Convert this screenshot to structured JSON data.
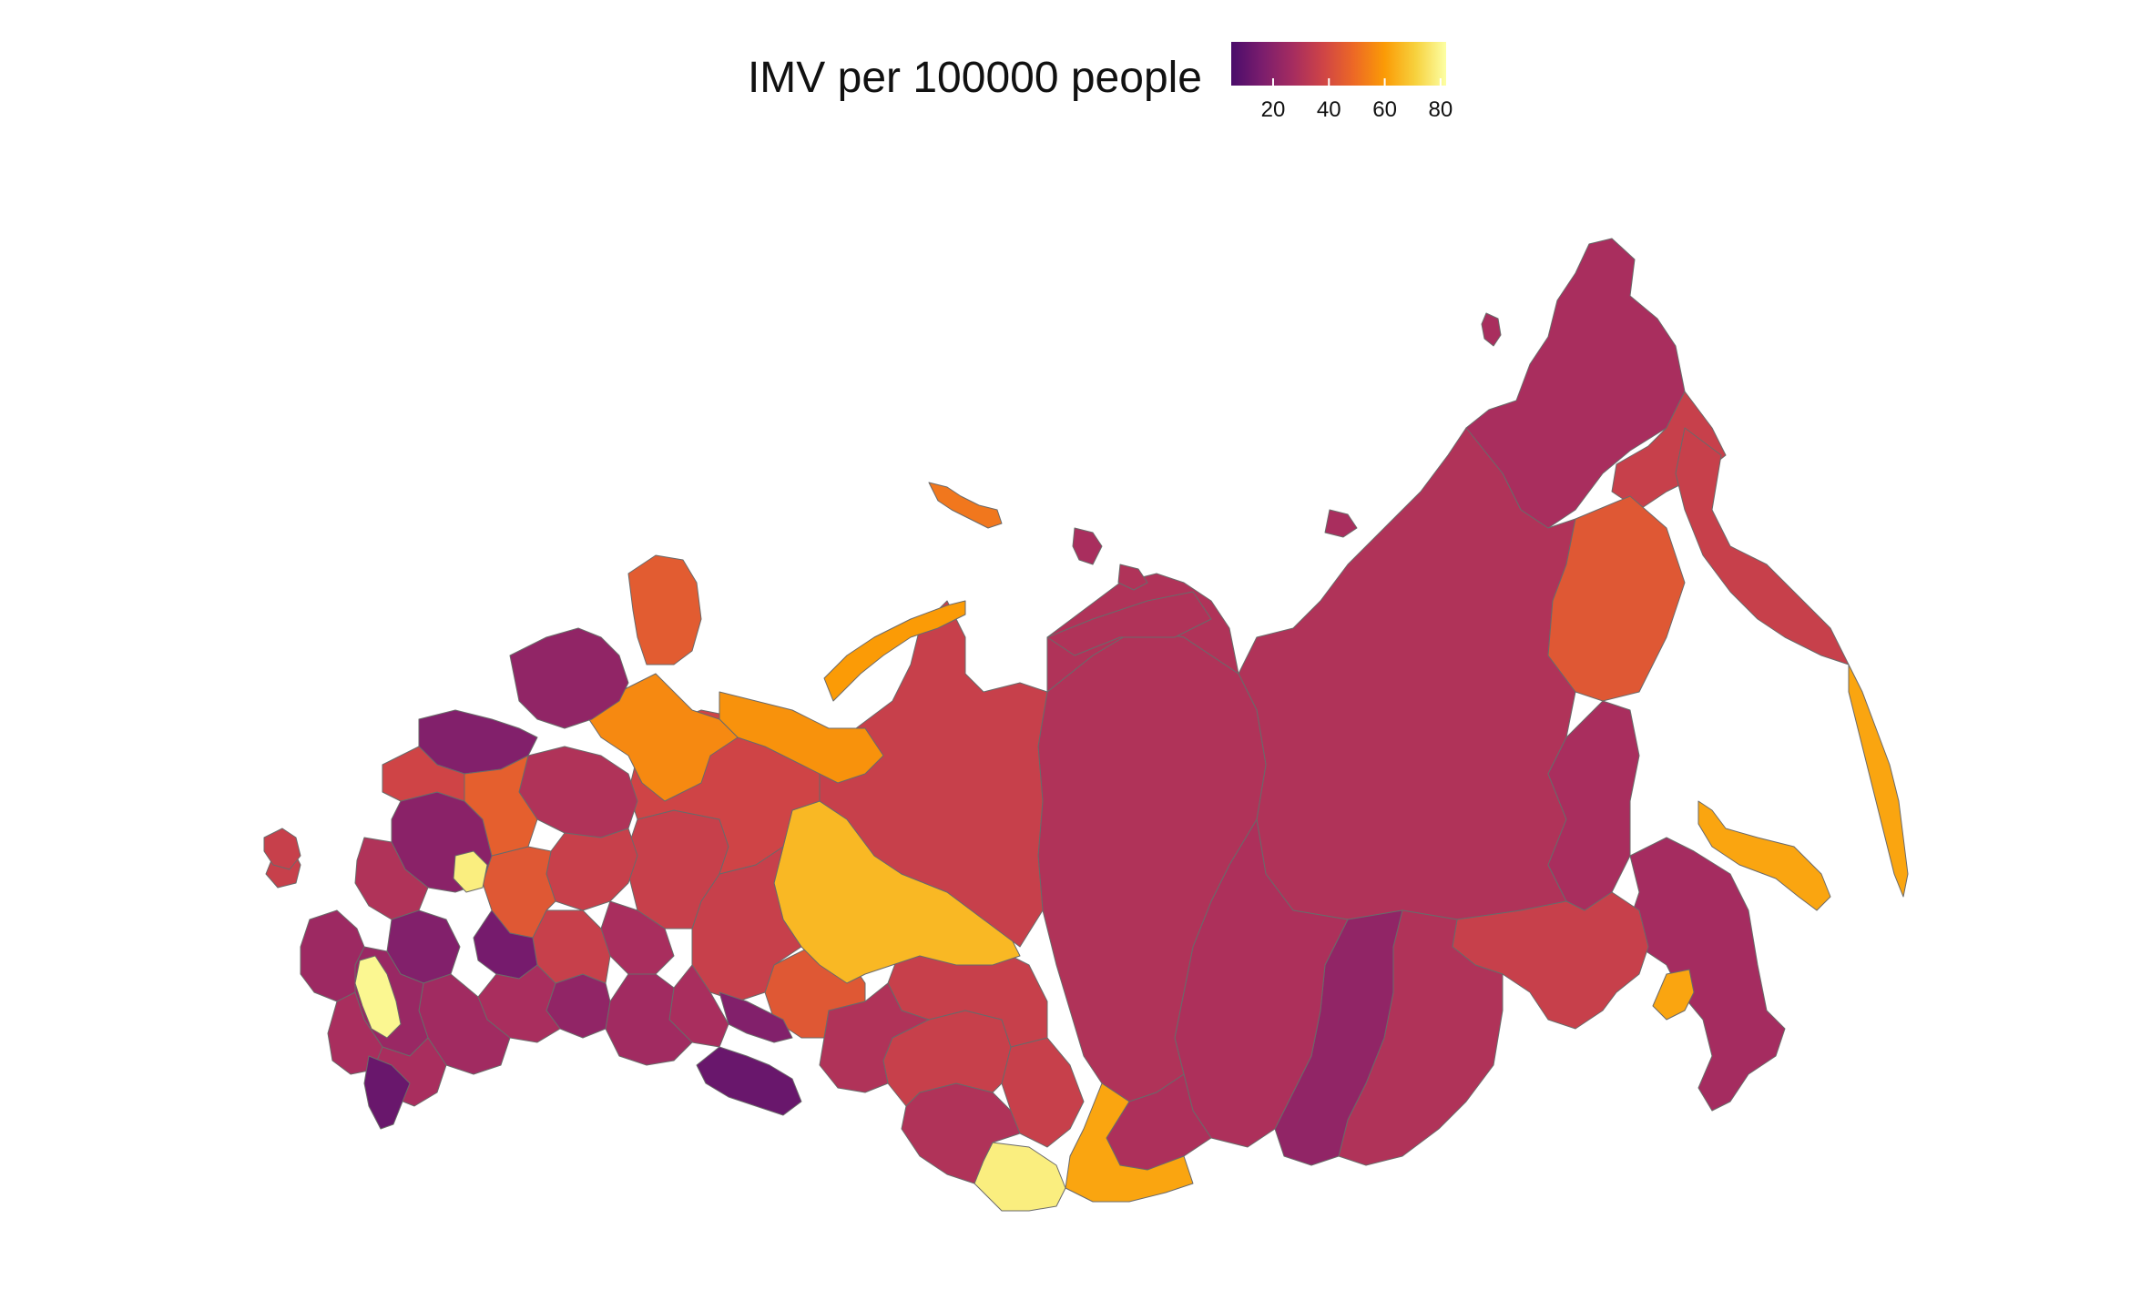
{
  "legend": {
    "title": "IMV per 100000 people",
    "ticks": [
      20,
      40,
      60,
      80
    ],
    "range": [
      5,
      82
    ],
    "palette": [
      "#4a0c6b",
      "#7a1d6d",
      "#a52c60",
      "#cf4446",
      "#ed6925",
      "#fb9b06",
      "#f7d13d",
      "#fcffa4"
    ]
  },
  "chart_data": {
    "type": "choropleth",
    "title": "IMV per 100000 people",
    "scale_range": [
      5,
      82
    ],
    "regions": [
      {
        "id": "far-east-north",
        "value": 28
      },
      {
        "id": "chukotka-east",
        "value": 36
      },
      {
        "id": "yakutia",
        "value": 30
      },
      {
        "id": "magadan",
        "value": 44
      },
      {
        "id": "kamchatka",
        "value": 36
      },
      {
        "id": "kuril",
        "value": 62
      },
      {
        "id": "sakhalin",
        "value": 62
      },
      {
        "id": "khabarovsk",
        "value": 28
      },
      {
        "id": "primorye",
        "value": 27
      },
      {
        "id": "jewish-ao",
        "value": 62
      },
      {
        "id": "amur",
        "value": 36
      },
      {
        "id": "zabaykalsky",
        "value": 30
      },
      {
        "id": "buryatia",
        "value": 22
      },
      {
        "id": "irkutsk",
        "value": 29
      },
      {
        "id": "krasnoyarsk",
        "value": 30
      },
      {
        "id": "tuva",
        "value": 29
      },
      {
        "id": "khakassia",
        "value": 62
      },
      {
        "id": "altai-rep",
        "value": 78
      },
      {
        "id": "altai-krai",
        "value": 30
      },
      {
        "id": "kemerovo",
        "value": 36
      },
      {
        "id": "novosibirsk",
        "value": 36
      },
      {
        "id": "tomsk",
        "value": 36
      },
      {
        "id": "omsk",
        "value": 30
      },
      {
        "id": "tyumen",
        "value": 44
      },
      {
        "id": "khmao",
        "value": 66
      },
      {
        "id": "yamal",
        "value": 36
      },
      {
        "id": "taymyr",
        "value": 30
      },
      {
        "id": "sverdlovsk",
        "value": 36
      },
      {
        "id": "chelyabinsk",
        "value": 18
      },
      {
        "id": "kurgan",
        "value": 28
      },
      {
        "id": "perm",
        "value": 36
      },
      {
        "id": "komi",
        "value": 38
      },
      {
        "id": "nenets",
        "value": 58
      },
      {
        "id": "arkhangelsk",
        "value": 56
      },
      {
        "id": "novaya-zemlya",
        "value": 60
      },
      {
        "id": "franz-josef",
        "value": 52
      },
      {
        "id": "murmansk",
        "value": 45
      },
      {
        "id": "karelia",
        "value": 22
      },
      {
        "id": "leningrad",
        "value": 18
      },
      {
        "id": "vologda",
        "value": 30
      },
      {
        "id": "kirov",
        "value": 36
      },
      {
        "id": "udmurtia",
        "value": 28
      },
      {
        "id": "bashkortostan",
        "value": 26
      },
      {
        "id": "orenburg",
        "value": 12
      },
      {
        "id": "samara",
        "value": 22
      },
      {
        "id": "tatarstan",
        "value": 36
      },
      {
        "id": "nizhny",
        "value": 44
      },
      {
        "id": "moscow-area",
        "value": 20
      },
      {
        "id": "tver",
        "value": 38
      },
      {
        "id": "yaroslavl",
        "value": 46
      },
      {
        "id": "kaliningrad",
        "value": 36
      },
      {
        "id": "bryansk",
        "value": 30
      },
      {
        "id": "voronezh",
        "value": 18
      },
      {
        "id": "lipetsk",
        "value": 78
      },
      {
        "id": "penza",
        "value": 15
      },
      {
        "id": "saratov",
        "value": 28
      },
      {
        "id": "volgograd",
        "value": 26
      },
      {
        "id": "rostov",
        "value": 24
      },
      {
        "id": "krasnodar",
        "value": 25
      },
      {
        "id": "stavropol",
        "value": 28
      },
      {
        "id": "kalmykia",
        "value": 28
      },
      {
        "id": "karachay",
        "value": 80
      },
      {
        "id": "dagestan",
        "value": 12
      },
      {
        "id": "crimea",
        "value": 36
      },
      {
        "id": "chukotka-island",
        "value": 28
      },
      {
        "id": "wrangel",
        "value": 28
      },
      {
        "id": "new-siberian",
        "value": 28
      },
      {
        "id": "severnaya-zemlya",
        "value": 30
      },
      {
        "id": "taymyr-west",
        "value": 30
      }
    ]
  }
}
